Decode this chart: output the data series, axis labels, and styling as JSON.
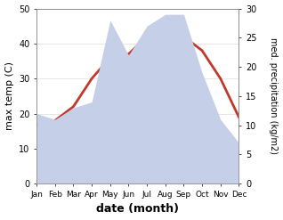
{
  "months": [
    "Jan",
    "Feb",
    "Mar",
    "Apr",
    "May",
    "Jun",
    "Jul",
    "Aug",
    "Sep",
    "Oct",
    "Nov",
    "Dec"
  ],
  "temp": [
    17,
    18,
    22,
    30,
    36,
    37,
    42,
    45,
    42,
    38,
    30,
    19
  ],
  "precip": [
    12,
    11,
    13,
    14,
    28,
    22,
    27,
    29,
    29,
    19,
    11,
    7
  ],
  "temp_color": "#c0392b",
  "precip_color_fill": "#c5cfe8",
  "left_ylabel": "max temp (C)",
  "right_ylabel": "med. precipitation (kg/m2)",
  "xlabel": "date (month)",
  "ylim_left": [
    0,
    50
  ],
  "ylim_right": [
    0,
    30
  ],
  "temp_linewidth": 2.0,
  "right_yticks": [
    0,
    5,
    10,
    15,
    20,
    25,
    30
  ],
  "left_yticks": [
    0,
    10,
    20,
    30,
    40,
    50
  ]
}
